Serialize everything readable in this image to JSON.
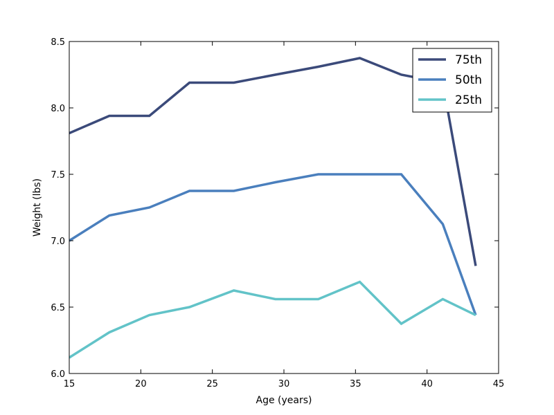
{
  "chart_data": {
    "type": "line",
    "title": "",
    "xlabel": "Age (years)",
    "ylabel": "Weight (lbs)",
    "xlim": [
      15,
      45
    ],
    "ylim": [
      6.0,
      8.5
    ],
    "xticks": [
      15,
      20,
      25,
      30,
      35,
      40,
      45
    ],
    "yticks": [
      6.0,
      6.5,
      7.0,
      7.5,
      8.0,
      8.5
    ],
    "xtick_labels": [
      "15",
      "20",
      "25",
      "30",
      "35",
      "40",
      "45"
    ],
    "ytick_labels": [
      "6.0",
      "6.5",
      "7.0",
      "7.5",
      "8.0",
      "8.5"
    ],
    "grid": false,
    "legend_position": "top-right",
    "x": [
      15.0,
      17.8,
      20.6,
      23.4,
      26.5,
      29.4,
      32.4,
      35.3,
      38.2,
      41.1,
      43.4
    ],
    "series": [
      {
        "name": "75th",
        "color": "#3b4a7a",
        "values": [
          7.81,
          7.94,
          7.94,
          8.19,
          8.19,
          8.25,
          8.31,
          8.375,
          8.25,
          8.19,
          6.81
        ]
      },
      {
        "name": "50th",
        "color": "#4a7fbd",
        "values": [
          7.0,
          7.19,
          7.25,
          7.375,
          7.375,
          7.44,
          7.5,
          7.5,
          7.5,
          7.125,
          6.44
        ]
      },
      {
        "name": "25th",
        "color": "#62c3c8",
        "values": [
          6.12,
          6.31,
          6.44,
          6.5,
          6.625,
          6.56,
          6.56,
          6.69,
          6.375,
          6.56,
          6.44
        ]
      }
    ]
  }
}
